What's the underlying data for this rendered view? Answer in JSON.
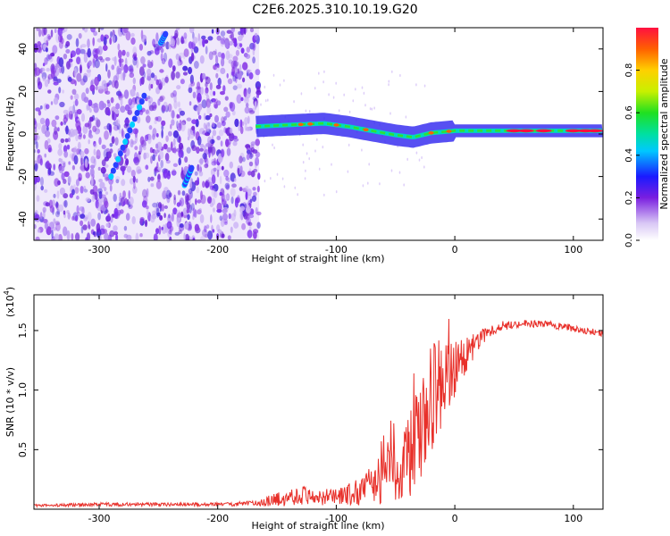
{
  "title": "C2E6.2025.310.10.19.G20",
  "colors": {
    "snr_line": "#e8302a",
    "axis": "#000000",
    "background": "#ffffff"
  },
  "chart_data": [
    {
      "type": "heatmap",
      "name": "spectrogram",
      "title": "C2E6.2025.310.10.19.G20",
      "xlabel": "Height of straight line (km)",
      "ylabel": "Frequency (Hz)",
      "xlim": [
        -355,
        125
      ],
      "ylim": [
        -50,
        50
      ],
      "xticks": [
        -300,
        -200,
        -100,
        0,
        100
      ],
      "yticks": [
        -40,
        -20,
        0,
        20,
        40
      ],
      "xtick_labels": [
        "-300",
        "-200",
        "-100",
        "0",
        "100"
      ],
      "ytick_labels": [
        "-40",
        "-20",
        "0",
        "20",
        "40"
      ],
      "colorbar": {
        "label": "Normalized spectral amplitude",
        "range": [
          0,
          1
        ],
        "ticks": [
          0.0,
          0.2,
          0.4,
          0.6,
          0.8
        ],
        "tick_labels": [
          "0.0",
          "0.2",
          "0.4",
          "0.6",
          "0.8"
        ]
      },
      "noise_region_x": [
        -355,
        -165
      ],
      "signal_track": [
        {
          "x": -168,
          "f": 3.5
        },
        {
          "x": -150,
          "f": 4.0
        },
        {
          "x": -130,
          "f": 4.5
        },
        {
          "x": -110,
          "f": 5.0
        },
        {
          "x": -90,
          "f": 3.5
        },
        {
          "x": -70,
          "f": 1.5
        },
        {
          "x": -50,
          "f": -0.5
        },
        {
          "x": -35,
          "f": -1.5
        },
        {
          "x": -20,
          "f": 0.5
        },
        {
          "x": 0,
          "f": 1.5
        },
        {
          "x": 20,
          "f": 1.5
        },
        {
          "x": 50,
          "f": 1.5
        },
        {
          "x": 80,
          "f": 1.5
        },
        {
          "x": 110,
          "f": 1.5
        },
        {
          "x": 125,
          "f": 1.5
        }
      ],
      "streaks": [
        {
          "x0": -290,
          "f0": -20,
          "x1": -262,
          "f1": 18
        },
        {
          "x0": -228,
          "f0": -24,
          "x1": -222,
          "f1": -16
        },
        {
          "x0": -248,
          "f0": 43,
          "x1": -244,
          "f1": 47
        }
      ]
    },
    {
      "type": "line",
      "name": "snr",
      "xlabel": "Height of straight line (km)",
      "ylabel": "SNR (10 * v/v)",
      "scale_label": "(x10",
      "scale_exponent": "4",
      "xlim": [
        -355,
        125
      ],
      "ylim": [
        0,
        1.8
      ],
      "xticks": [
        -300,
        -200,
        -100,
        0,
        100
      ],
      "yticks": [
        0.5,
        1.0,
        1.5
      ],
      "xtick_labels": [
        "-300",
        "-200",
        "-100",
        "0",
        "100"
      ],
      "ytick_labels": [
        "0.5",
        "1.0",
        "1.5"
      ],
      "series": [
        {
          "name": "SNR",
          "x": [
            -355,
            -300,
            -250,
            -200,
            -170,
            -150,
            -130,
            -110,
            -100,
            -90,
            -80,
            -70,
            -60,
            -50,
            -40,
            -30,
            -25,
            -20,
            -15,
            -10,
            -5,
            0,
            10,
            20,
            30,
            40,
            60,
            80,
            100,
            110,
            125
          ],
          "y": [
            0.03,
            0.04,
            0.04,
            0.04,
            0.05,
            0.08,
            0.12,
            0.1,
            0.1,
            0.12,
            0.15,
            0.2,
            0.28,
            0.35,
            0.45,
            0.6,
            0.75,
            0.9,
            1.0,
            1.05,
            1.12,
            1.2,
            1.3,
            1.42,
            1.5,
            1.54,
            1.56,
            1.55,
            1.52,
            1.5,
            1.47
          ],
          "noise_amplitude": [
            0.01,
            0.015,
            0.015,
            0.015,
            0.02,
            0.06,
            0.08,
            0.07,
            0.07,
            0.09,
            0.12,
            0.16,
            0.25,
            0.3,
            0.35,
            0.45,
            0.5,
            0.5,
            0.45,
            0.4,
            0.3,
            0.25,
            0.15,
            0.08,
            0.05,
            0.04,
            0.03,
            0.03,
            0.03,
            0.03,
            0.03
          ]
        }
      ]
    }
  ]
}
